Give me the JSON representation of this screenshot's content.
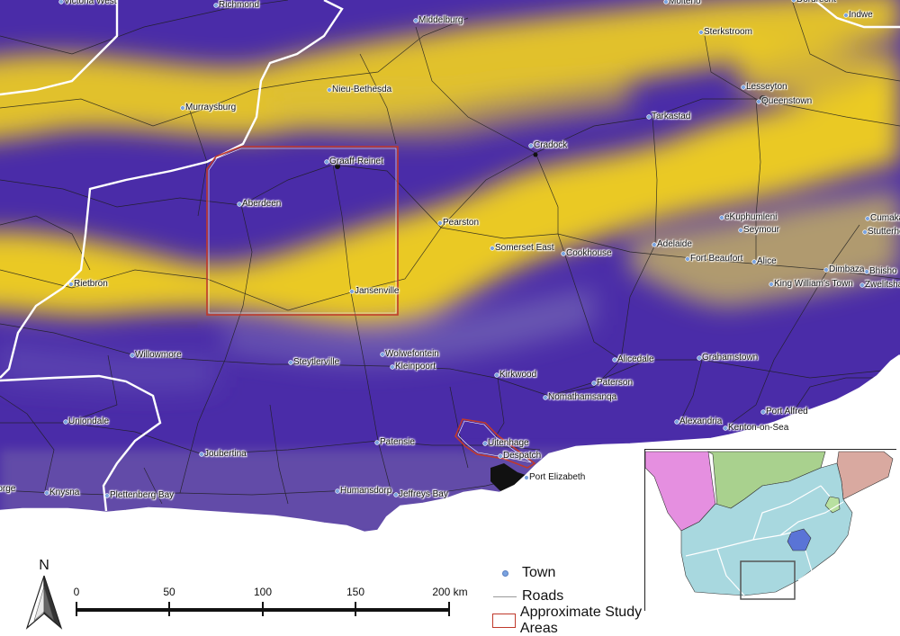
{
  "map": {
    "towns": [
      {
        "name": "Victoria West"
      },
      {
        "name": "Richmond"
      },
      {
        "name": "Middelburg"
      },
      {
        "name": "Molteno"
      },
      {
        "name": "Dordrecht"
      },
      {
        "name": "Indwe"
      },
      {
        "name": "Sterkstroom"
      },
      {
        "name": "Murraysburg"
      },
      {
        "name": "Nieu-Bethesda"
      },
      {
        "name": "Lesseyton"
      },
      {
        "name": "Queenstown"
      },
      {
        "name": "Tarkastad"
      },
      {
        "name": "Cradock"
      },
      {
        "name": "Graaff-Reinet"
      },
      {
        "name": "Aberdeen"
      },
      {
        "name": "Pearston"
      },
      {
        "name": "eKuphumleni"
      },
      {
        "name": "Seymour"
      },
      {
        "name": "Cumakala"
      },
      {
        "name": "Stutterheim"
      },
      {
        "name": "Somerset East"
      },
      {
        "name": "Cookhouse"
      },
      {
        "name": "Adelaide"
      },
      {
        "name": "Fort Beaufort"
      },
      {
        "name": "Alice"
      },
      {
        "name": "Dimbaza"
      },
      {
        "name": "Bhisho"
      },
      {
        "name": "King William's Town"
      },
      {
        "name": "Zwelitsha"
      },
      {
        "name": "Rietbron"
      },
      {
        "name": "Jansenville"
      },
      {
        "name": "Willowmore"
      },
      {
        "name": "Steytlerville"
      },
      {
        "name": "Wolwefontein"
      },
      {
        "name": "Kleinpoort"
      },
      {
        "name": "Alicedale"
      },
      {
        "name": "Grahamstown"
      },
      {
        "name": "Kirkwood"
      },
      {
        "name": "Paterson"
      },
      {
        "name": "Nomathamsanqa"
      },
      {
        "name": "Port Alfred"
      },
      {
        "name": "Alexandria"
      },
      {
        "name": "Kenton-on-Sea"
      },
      {
        "name": "Uniondale"
      },
      {
        "name": "Uitenhage"
      },
      {
        "name": "Patensie"
      },
      {
        "name": "Despatch"
      },
      {
        "name": "Joubertina"
      },
      {
        "name": "Port Elizabeth"
      },
      {
        "name": "Humansdorp"
      },
      {
        "name": "Jeffreys Bay"
      },
      {
        "name": "Knysna"
      },
      {
        "name": "Plettenberg Bay"
      },
      {
        "name": "George"
      }
    ],
    "colors": {
      "low": "#4a2ca8",
      "mid": "#8f86a8",
      "high": "#f2d21e",
      "road": "#222222",
      "boundary": "#ffffff",
      "study_area": "#c0392b",
      "town": "#7aa3e0",
      "ocean": "#ffffff"
    }
  },
  "legend": {
    "town_label": "Town",
    "roads_label": "Roads",
    "study_label": "Approximate Study Areas"
  },
  "scale": {
    "ticks": [
      "0",
      "50",
      "100",
      "150",
      "200 km"
    ]
  },
  "north": {
    "label": "N"
  },
  "inset": {
    "colors": {
      "south_africa": "#a8d8df",
      "namibia": "#e58fe0",
      "botswana": "#a9d18e",
      "mozambique": "#d9a9a0",
      "lesotho": "#5a74d6",
      "swaziland": "#b8e0a0",
      "extent_box": "#555555"
    }
  }
}
